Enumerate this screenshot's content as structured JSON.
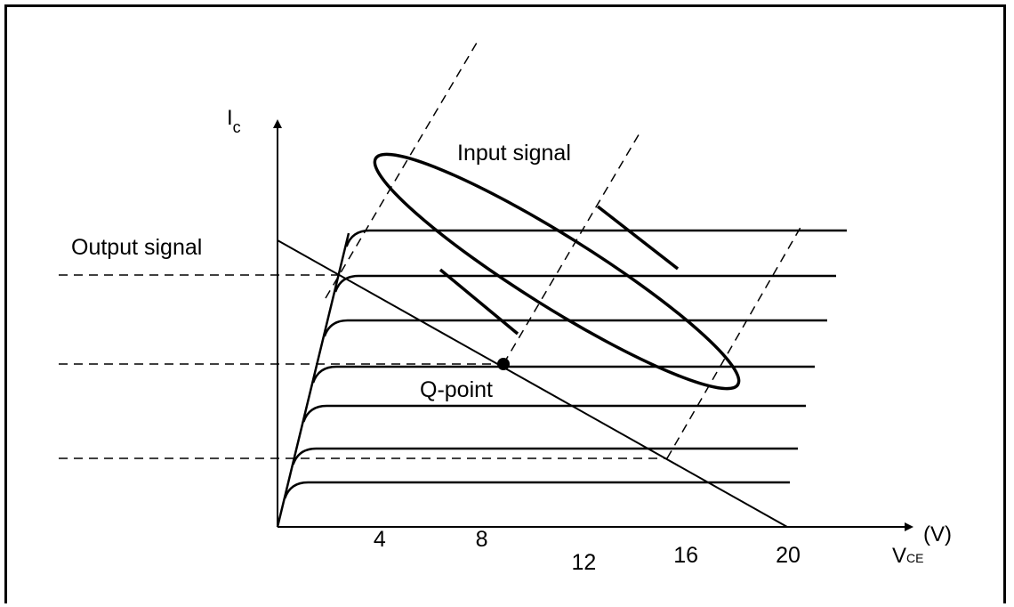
{
  "chart_data": {
    "type": "line",
    "title": "",
    "xlabel": "V",
    "xlabel_sub": "CE",
    "xunit": "(V)",
    "ylabel": "I",
    "ylabel_sub": "c",
    "x_ticks": [
      4,
      8,
      12,
      16,
      20
    ],
    "annotations": {
      "input_signal": "Input signal",
      "output_signal": "Output signal",
      "q_point": "Q-point"
    },
    "characteristic_curves": 7,
    "load_line": {
      "x_intercept": 20
    }
  },
  "colors": {
    "stroke": "#000000",
    "background": "#ffffff"
  }
}
